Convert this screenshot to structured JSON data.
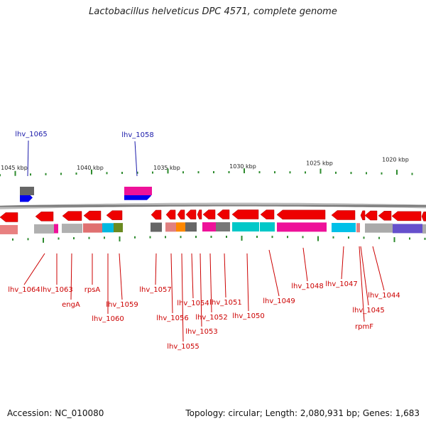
{
  "title": "Lactobacillus helveticus DPC 4571, complete genome",
  "footer": {
    "accession": "Accession: NC_010080",
    "summary": "Topology: circular; Length: 2,080,931 bp; Genes: 1,683"
  },
  "colors": {
    "axis": "#888888",
    "tick": "#2e8b2e",
    "bottom_label": "#cc0000",
    "top_label": "#1a1aaa",
    "forward_gene": "#0000ee",
    "reverse_gene": "#ee0000"
  },
  "scale_labels": [
    "1045 kbp",
    "1040 kbp",
    "1035 kbp",
    "1030 kbp",
    "1025 kbp",
    "1020 kbp"
  ],
  "top_labels": [
    "lhv_1065",
    "lhv_1058"
  ],
  "bottom_labels": [
    "lhv_1064",
    "lhv_1063",
    "engA",
    "rpsA",
    "lhv_1060",
    "lhv_1059",
    "lhv_1057",
    "lhv_1056",
    "lhv_1055",
    "lhv_1054",
    "lhv_1053",
    "lhv_1052",
    "lhv_1051",
    "lhv_1050",
    "lhv_1049",
    "lhv_1048",
    "lhv_1047",
    "lhv_1045",
    "rpmF",
    "lhv_1044"
  ]
}
